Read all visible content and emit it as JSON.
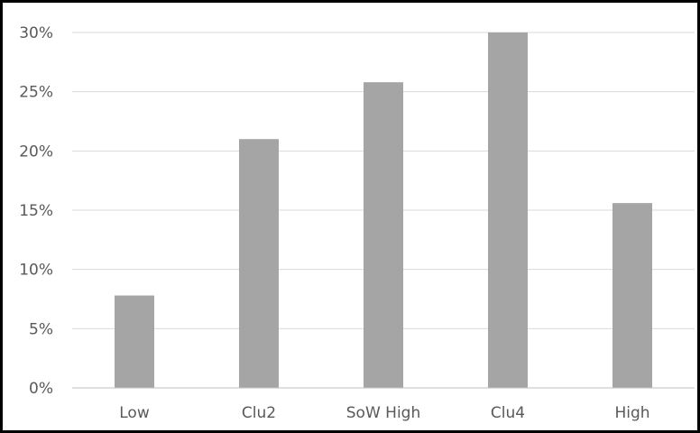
{
  "chart_data": {
    "type": "bar",
    "title": "",
    "xlabel": "",
    "ylabel": "",
    "categories": [
      "Low",
      "Clu2",
      "SoW High",
      "Clu4",
      "High"
    ],
    "values": [
      7.8,
      21.0,
      25.8,
      30.0,
      15.6
    ],
    "ylim": [
      0,
      30
    ],
    "yticks": [
      0,
      5,
      10,
      15,
      20,
      25,
      30
    ],
    "ytick_labels": [
      "0%",
      "5%",
      "10%",
      "15%",
      "20%",
      "25%",
      "30%"
    ],
    "grid": true,
    "legend": "none",
    "bar_color": "#a5a5a5",
    "grid_color": "#d9d9d9",
    "axis_color": "#bfbfbf",
    "label_color": "#595959"
  }
}
